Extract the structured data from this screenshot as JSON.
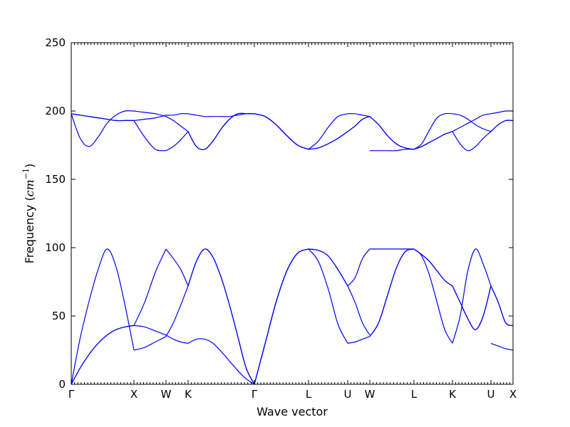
{
  "chart_data": {
    "type": "line",
    "xlabel": "Wave vector",
    "ylabel_prefix": "Frequency (",
    "ylabel_unit_base": "cm",
    "ylabel_unit_exp": "−1",
    "ylabel_suffix": ")",
    "ylim": [
      0,
      250
    ],
    "yticks": [
      0,
      50,
      100,
      150,
      200,
      250
    ],
    "xticks": [
      "Γ",
      "X",
      "W",
      "K",
      "Γ",
      "L",
      "U",
      "W",
      "L",
      "K",
      "U",
      "X"
    ],
    "series_color": "#0000ff",
    "grid": false,
    "segments": [
      {
        "from": "Γ",
        "to": "X",
        "bands": [
          [
            0,
            34,
            61,
            84,
            99,
            86,
            58,
            25
          ],
          [
            0,
            12,
            22,
            30,
            36,
            40,
            42,
            43
          ],
          [
            0,
            12,
            22,
            30,
            36,
            40,
            42,
            43
          ],
          [
            198,
            180,
            174,
            181,
            191,
            197,
            200,
            200
          ],
          [
            198,
            197,
            196,
            195,
            194,
            193,
            193,
            193
          ],
          [
            198,
            197,
            196,
            195,
            194,
            193,
            193,
            193
          ]
        ]
      },
      {
        "from": "X",
        "to": "W",
        "bands": [
          [
            43,
            60,
            82,
            99
          ],
          [
            25,
            27,
            31,
            35
          ],
          [
            43,
            42,
            39,
            36
          ],
          [
            200,
            199,
            198,
            196
          ],
          [
            193,
            181,
            172,
            171
          ],
          [
            193,
            194,
            195,
            197
          ]
        ]
      },
      {
        "from": "W",
        "to": "K",
        "bands": [
          [
            99,
            92,
            84,
            72
          ],
          [
            35,
            45,
            58,
            72
          ],
          [
            36,
            33,
            31,
            30
          ],
          [
            171,
            174,
            179,
            185
          ],
          [
            196,
            193,
            189,
            185
          ],
          [
            197,
            197,
            198,
            198
          ]
        ]
      },
      {
        "from": "K",
        "to": "Γ",
        "bands": [
          [
            72,
            90,
            99,
            93,
            78,
            58,
            35,
            12,
            0
          ],
          [
            72,
            90,
            99,
            93,
            78,
            58,
            35,
            12,
            0
          ],
          [
            30,
            33,
            33,
            30,
            24,
            17,
            10,
            4,
            0
          ],
          [
            185,
            174,
            172,
            178,
            187,
            194,
            198,
            198,
            198
          ],
          [
            185,
            174,
            172,
            178,
            187,
            194,
            198,
            198,
            198
          ],
          [
            198,
            197,
            196,
            196,
            196,
            196,
            197,
            198,
            198
          ]
        ]
      },
      {
        "from": "Γ",
        "to": "L",
        "bands": [
          [
            0,
            30,
            60,
            83,
            96,
            99
          ],
          [
            0,
            30,
            60,
            83,
            96,
            99
          ],
          [
            0,
            30,
            60,
            83,
            96,
            99
          ],
          [
            198,
            196,
            190,
            182,
            175,
            172
          ],
          [
            198,
            196,
            190,
            182,
            175,
            172
          ],
          [
            198,
            196,
            190,
            182,
            175,
            172
          ]
        ]
      },
      {
        "from": "L",
        "to": "U",
        "bands": [
          [
            99,
            98,
            94,
            84,
            72
          ],
          [
            99,
            98,
            94,
            84,
            72
          ],
          [
            99,
            90,
            70,
            44,
            30
          ],
          [
            172,
            173,
            176,
            180,
            185
          ],
          [
            172,
            173,
            176,
            180,
            185
          ],
          [
            172,
            178,
            188,
            196,
            198
          ]
        ]
      },
      {
        "from": "U",
        "to": "W",
        "bands": [
          [
            72,
            78,
            92,
            99
          ],
          [
            72,
            60,
            45,
            36
          ],
          [
            30,
            31,
            33,
            35
          ],
          [
            185,
            189,
            194,
            196
          ],
          [
            185,
            189,
            194,
            196
          ],
          [
            198,
            198,
            197,
            196
          ]
        ]
      },
      {
        "from": "W",
        "to": "L",
        "bands": [
          [
            99,
            99,
            99,
            99,
            99,
            99
          ],
          [
            35,
            45,
            65,
            85,
            97,
            99
          ],
          [
            35,
            45,
            65,
            85,
            97,
            99
          ],
          [
            196,
            190,
            182,
            176,
            173,
            172
          ],
          [
            171,
            171,
            171,
            171,
            172,
            172
          ],
          [
            196,
            190,
            182,
            176,
            173,
            172
          ]
        ]
      },
      {
        "from": "L",
        "to": "K",
        "bands": [
          [
            99,
            94,
            80,
            60,
            40,
            30
          ],
          [
            99,
            95,
            90,
            83,
            76,
            72
          ],
          [
            99,
            95,
            90,
            83,
            76,
            72
          ],
          [
            172,
            176,
            186,
            195,
            198,
            198
          ],
          [
            172,
            174,
            177,
            180,
            183,
            185
          ],
          [
            172,
            174,
            177,
            180,
            183,
            185
          ]
        ]
      },
      {
        "from": "K",
        "to": "U",
        "bands": [
          [
            30,
            50,
            83,
            99,
            88,
            72
          ],
          [
            72,
            60,
            48,
            40,
            50,
            72
          ],
          [
            72,
            60,
            48,
            40,
            50,
            72
          ],
          [
            185,
            176,
            171,
            174,
            180,
            185
          ],
          [
            198,
            197,
            194,
            190,
            187,
            185
          ],
          [
            185,
            188,
            191,
            194,
            197,
            198
          ]
        ]
      },
      {
        "from": "U",
        "to": "X",
        "bands": [
          [
            72,
            60,
            45,
            43
          ],
          [
            30,
            28,
            26,
            25
          ],
          [
            72,
            60,
            45,
            43
          ],
          [
            185,
            190,
            193,
            193
          ],
          [
            185,
            190,
            193,
            193
          ],
          [
            198,
            199,
            200,
            200
          ]
        ]
      }
    ]
  }
}
